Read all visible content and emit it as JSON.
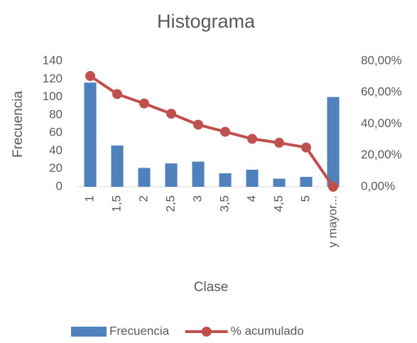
{
  "chart_data": {
    "type": "bar",
    "title": "Histograma",
    "xlabel": "Clase",
    "ylabel": "Frecuencia",
    "categories": [
      "1",
      "1,5",
      "2",
      "2,5",
      "3",
      "3,5",
      "4",
      "4,5",
      "5",
      "y mayor..."
    ],
    "series": [
      {
        "name": "Frecuencia",
        "type": "bar",
        "color": "#4f81bd",
        "values": [
          116,
          46,
          21,
          26,
          28,
          15,
          19,
          9,
          11,
          100
        ]
      },
      {
        "name": "% acumulado",
        "type": "line",
        "axis": "y2",
        "color": "#c0504d",
        "values": [
          70.5,
          59,
          53,
          46.5,
          39.5,
          35,
          30.5,
          28,
          25,
          0
        ]
      }
    ],
    "ylim": [
      0,
      140
    ],
    "yticks": [
      0,
      20,
      40,
      60,
      80,
      100,
      120,
      140
    ],
    "y2lim": [
      0,
      80
    ],
    "y2ticks": [
      {
        "value": 0,
        "label": "0,00%"
      },
      {
        "value": 20,
        "label": "20,00%"
      },
      {
        "value": 40,
        "label": "40,00%"
      },
      {
        "value": 60,
        "label": "60,00%"
      },
      {
        "value": 80,
        "label": "80,00%"
      }
    ],
    "grid": false,
    "legend": "bottom"
  }
}
